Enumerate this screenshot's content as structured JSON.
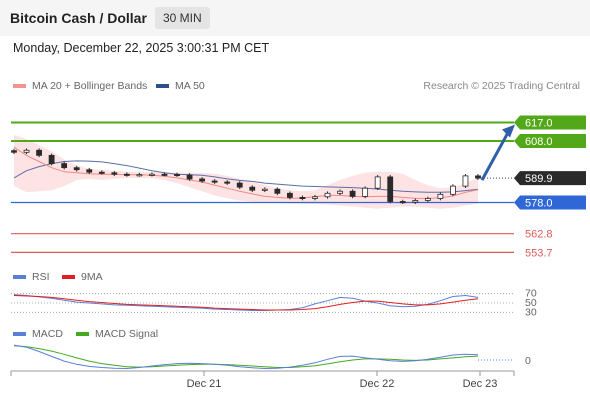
{
  "header": {
    "title": "Bitcoin Cash / Dollar",
    "timeframe": "30 MIN"
  },
  "datetime": "Monday, December 22, 2025 3:00:31 PM CET",
  "credit": "Research © 2025 Trading Central",
  "legend_main": [
    {
      "label": "MA 20 + Bollinger Bands",
      "color": "#f4948f"
    },
    {
      "label": "MA 50",
      "color": "#2f4f8f"
    }
  ],
  "legend_rsi": [
    {
      "label": "RSI",
      "color": "#5b7fd6"
    },
    {
      "label": "9MA",
      "color": "#e02020"
    }
  ],
  "legend_macd": [
    {
      "label": "MACD",
      "color": "#5b7fd6"
    },
    {
      "label": "MACD Signal",
      "color": "#44aa22"
    }
  ],
  "chart_data": {
    "type": "line",
    "main": {
      "ylim": [
        549,
        628
      ],
      "price": [
        602.5,
        603.5,
        601.0,
        597.0,
        595.0,
        594.0,
        592.8,
        592.5,
        591.8,
        591.5,
        591.6,
        591.8,
        591.7,
        591.4,
        589.5,
        588.5,
        588.0,
        587.5,
        585.5,
        584.0,
        584.5,
        582.5,
        580.5,
        580.0,
        580.8,
        582.5,
        583.5,
        581.0,
        585.0,
        590.5,
        578.5,
        578.2,
        579.0,
        580.0,
        582.0,
        586.0,
        591.0,
        589.9
      ],
      "ma20": [
        605.0,
        601.0,
        598.0,
        595.0,
        593.0,
        592.5,
        592.0,
        591.8,
        591.7,
        591.6,
        591.5,
        591.3,
        590.8,
        590.0,
        589.0,
        588.0,
        586.5,
        585.0,
        583.5,
        582.2,
        581.0,
        580.5,
        580.0,
        580.2,
        580.8,
        581.5,
        581.5,
        581.0,
        580.8,
        581.0,
        581.0,
        580.5,
        580.0,
        580.0,
        580.3,
        581.2,
        583.0,
        584.2
      ],
      "ma50": [
        590.0,
        593.5,
        595.5,
        597.0,
        598.0,
        598.3,
        598.2,
        597.8,
        597.0,
        596.0,
        594.8,
        593.5,
        592.5,
        591.8,
        591.5,
        591.3,
        590.5,
        589.5,
        588.8,
        588.3,
        587.5,
        587.0,
        586.5,
        586.0,
        585.8,
        585.6,
        585.5,
        585.3,
        585.0,
        584.6,
        584.0,
        583.5,
        583.2,
        583.0,
        583.0,
        583.2,
        583.8,
        584.5
      ],
      "bb_upper": [
        611.0,
        609.0,
        606.0,
        603.0,
        599.0,
        596.0,
        594.5,
        594.0,
        593.5,
        593.0,
        593.0,
        592.8,
        592.6,
        592.5,
        592.5,
        592.4,
        592.0,
        591.0,
        589.5,
        588.0,
        586.5,
        585.0,
        584.0,
        583.5,
        584.0,
        586.5,
        589.0,
        591.0,
        592.5,
        593.0,
        593.0,
        592.0,
        589.0,
        586.5,
        585.0,
        585.5,
        587.5,
        590.0
      ],
      "bb_lower": [
        586.0,
        583.0,
        583.5,
        584.0,
        586.0,
        589.0,
        589.5,
        589.0,
        589.5,
        590.0,
        590.0,
        589.8,
        589.0,
        587.5,
        585.5,
        583.5,
        581.5,
        580.0,
        579.0,
        578.5,
        578.0,
        577.8,
        577.5,
        577.5,
        577.3,
        577.0,
        576.5,
        576.0,
        575.5,
        575.0,
        575.5,
        576.0,
        576.0,
        575.5,
        575.0,
        575.5,
        576.5,
        577.5
      ],
      "levels": [
        {
          "value": 617.0,
          "label": "617.0",
          "kind": "resistance",
          "color": "#52a818"
        },
        {
          "value": 608.0,
          "label": "608.0",
          "kind": "resistance",
          "color": "#52a818"
        },
        {
          "value": 589.9,
          "label": "589.9",
          "kind": "last",
          "color": "#2a2a2a"
        },
        {
          "value": 578.0,
          "label": "578.0",
          "kind": "pivot",
          "color": "#2f68d6"
        },
        {
          "value": 562.8,
          "label": "562.8",
          "kind": "support",
          "color": "#e05a5a"
        },
        {
          "value": 553.7,
          "label": "553.7",
          "kind": "support",
          "color": "#e05a5a"
        }
      ]
    },
    "rsi": {
      "ylim": [
        20,
        80
      ],
      "levels": [
        70,
        50,
        30
      ],
      "rsi": [
        68,
        66,
        63,
        60,
        56,
        52,
        50,
        48,
        46,
        45,
        44,
        43,
        42,
        41,
        40,
        39,
        37,
        36,
        35,
        34,
        34,
        35,
        36,
        40,
        48,
        55,
        62,
        60,
        54,
        50,
        44,
        42,
        43,
        47,
        55,
        64,
        66,
        62
      ],
      "ma9": [
        66,
        65,
        64,
        62,
        59,
        56,
        53,
        51,
        49,
        47,
        46,
        45,
        44,
        43,
        42,
        41,
        39,
        38,
        37,
        36,
        35,
        35,
        35,
        36,
        38,
        42,
        47,
        51,
        54,
        54,
        51,
        48,
        46,
        46,
        48,
        52,
        56,
        59
      ]
    },
    "macd": {
      "ylim": [
        -4.5,
        4.5
      ],
      "zero_label": "0",
      "macd": [
        4.2,
        3.6,
        2.4,
        1.0,
        -0.3,
        -1.2,
        -1.8,
        -2.1,
        -2.3,
        -2.4,
        -2.1,
        -1.7,
        -1.3,
        -1.0,
        -0.9,
        -1.0,
        -1.2,
        -1.5,
        -1.9,
        -2.2,
        -2.4,
        -2.3,
        -2.0,
        -1.5,
        -0.8,
        0.2,
        1.0,
        1.1,
        0.6,
        0.2,
        -0.2,
        -0.4,
        -0.2,
        0.2,
        0.8,
        1.4,
        1.6,
        1.5
      ],
      "signal": [
        4.0,
        3.7,
        3.2,
        2.5,
        1.6,
        0.6,
        -0.3,
        -1.0,
        -1.5,
        -1.9,
        -2.0,
        -1.9,
        -1.7,
        -1.5,
        -1.3,
        -1.2,
        -1.2,
        -1.3,
        -1.5,
        -1.7,
        -1.9,
        -2.1,
        -2.1,
        -1.9,
        -1.6,
        -1.1,
        -0.5,
        0.0,
        0.3,
        0.3,
        0.2,
        0.0,
        -0.1,
        0.0,
        0.3,
        0.6,
        0.9,
        1.1
      ]
    },
    "x_ticks": [
      "Dec 21",
      "Dec 22",
      "Dec 23"
    ]
  }
}
